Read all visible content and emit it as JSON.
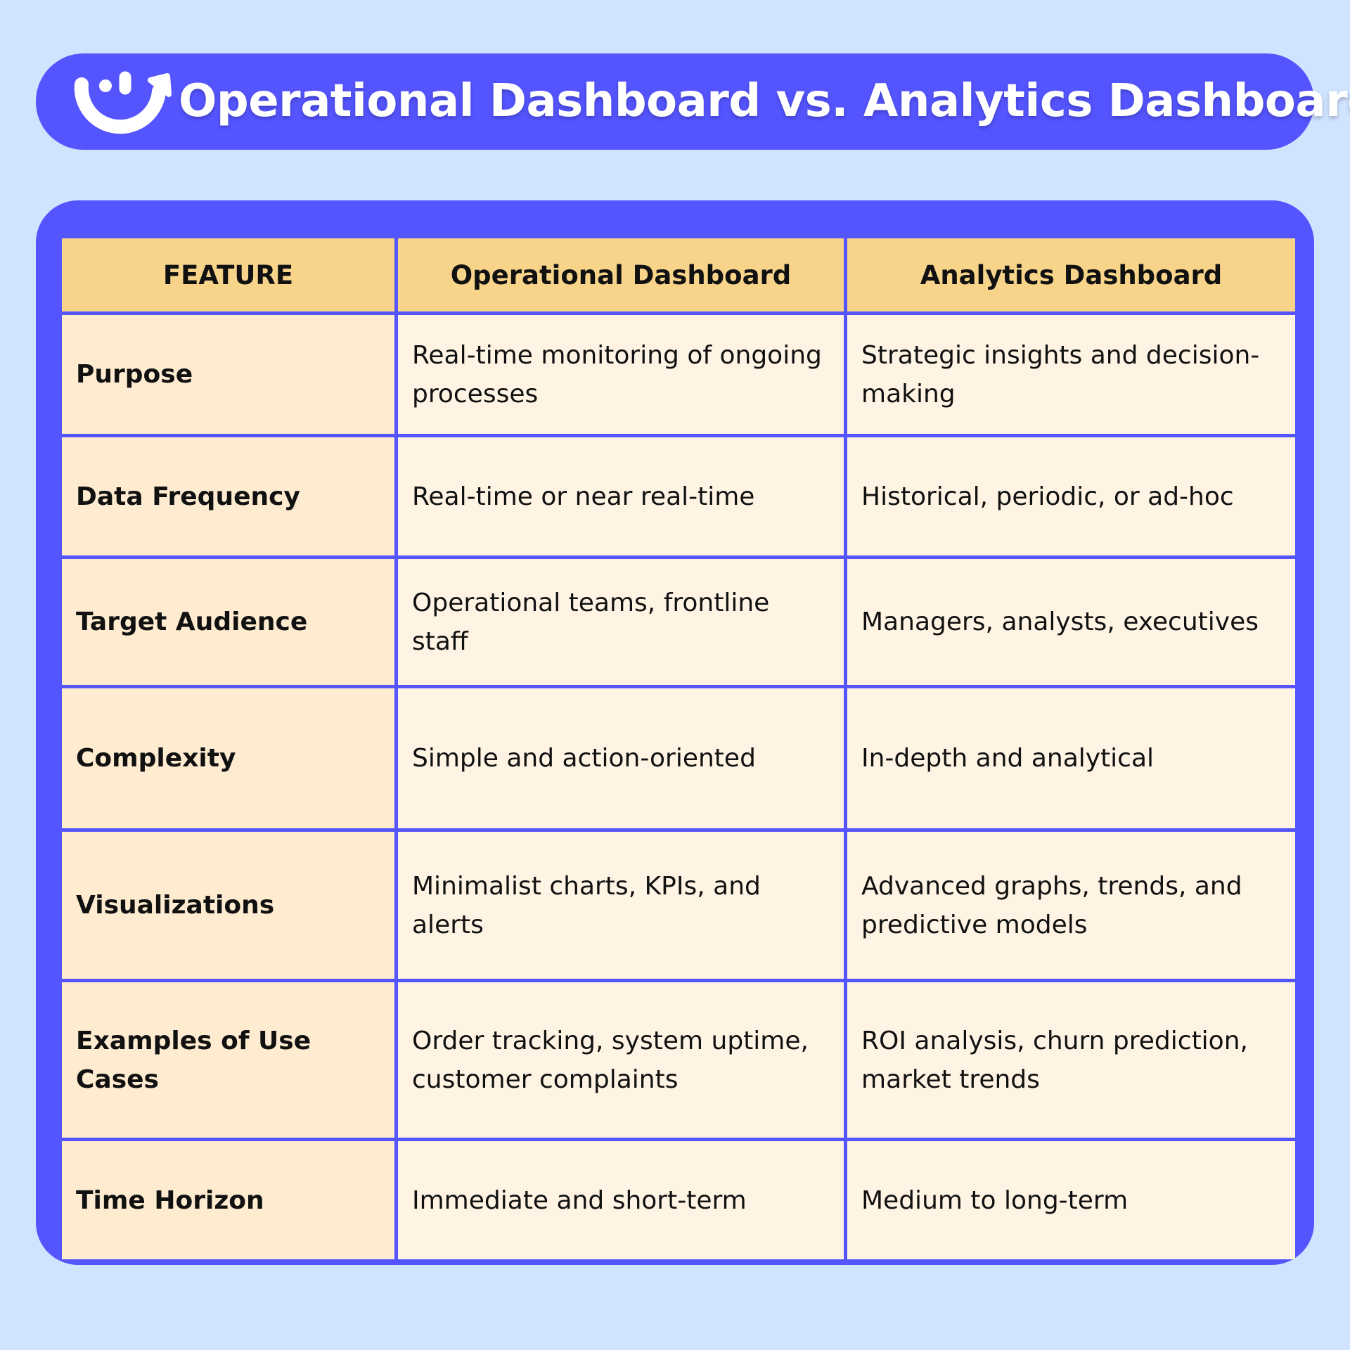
{
  "title": "Operational Dashboard vs. Analytics Dashboard",
  "logo": {
    "icon": "smile-arrow-logo"
  },
  "colors": {
    "background": "#D0E4FF",
    "accent": "#5555FF",
    "header": "#F7D48A",
    "feature_cell": "#FEEBD0",
    "value_cell": "#FFF4E4"
  },
  "table": {
    "headers": [
      "FEATURE",
      "Operational Dashboard",
      "Analytics Dashboard"
    ],
    "rows": [
      [
        "Purpose",
        "Real-time monitoring of ongoing processes",
        "Strategic insights and decision-making"
      ],
      [
        "Data Frequency",
        "Real-time or near real-time",
        "Historical, periodic, or ad-hoc"
      ],
      [
        "Target Audience",
        "Operational teams, frontline staff",
        "Managers, analysts, executives"
      ],
      [
        "Complexity",
        "Simple and action-oriented",
        "In-depth and analytical"
      ],
      [
        "Visualizations",
        "Minimalist charts, KPIs, and alerts",
        "Advanced graphs, trends, and predictive models"
      ],
      [
        "Examples of Use Cases",
        "Order tracking, system uptime, customer complaints",
        "ROI analysis, churn prediction, market trends"
      ],
      [
        "Time Horizon",
        "Immediate and short-term",
        "Medium to long-term"
      ]
    ]
  }
}
